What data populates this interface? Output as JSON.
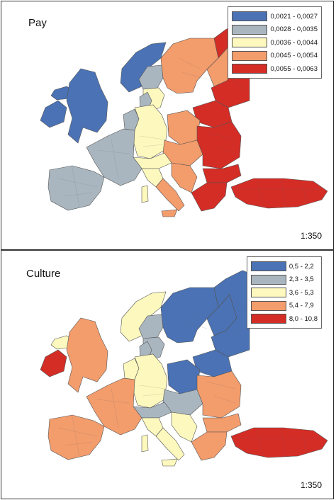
{
  "maps": [
    {
      "title": "Pay",
      "scale": "1:350",
      "legend": [
        {
          "label": "0,0021 - 0,0027",
          "color": "#4a72b5"
        },
        {
          "label": "0,0028 - 0,0035",
          "color": "#a9b6bf"
        },
        {
          "label": "0,0036 - 0,0044",
          "color": "#fdf8bd"
        },
        {
          "label": "0,0045 - 0,0054",
          "color": "#f39c6c"
        },
        {
          "label": "0,0055 - 0,0063",
          "color": "#d42d26"
        }
      ],
      "regions": {
        "iceland": 1,
        "ireland": 1,
        "great-britain": 1,
        "norway": 1,
        "france": 2,
        "iberia": 2,
        "benelux": 2,
        "denmark": 2,
        "central-sweden": 2,
        "germany": 3,
        "switzerland-austria": 3,
        "north-italy": 3,
        "south-sweden": 3,
        "sardinia": 3,
        "sweden": 4,
        "finland": 4,
        "poland": 4,
        "czech-slovakia-hungary": 4,
        "south-italy": 4,
        "sicily": 4,
        "balkans": 4,
        "north-finland": 5,
        "baltics": 5,
        "romania": 5,
        "bulgaria": 5,
        "greece": 5,
        "turkey": 5
      }
    },
    {
      "title": "Culture",
      "scale": "1:350",
      "legend": [
        {
          "label": "0,5 - 2,2",
          "color": "#4a72b5"
        },
        {
          "label": "2,3 - 3,5",
          "color": "#a9b6bf"
        },
        {
          "label": "3,6 - 5,3",
          "color": "#fdf8bd"
        },
        {
          "label": "5,4 - 7,9",
          "color": "#f39c6c"
        },
        {
          "label": "8,0 - 10,8",
          "color": "#d42d26"
        }
      ],
      "regions": {
        "sweden": 1,
        "finland": 1,
        "north-finland": 1,
        "baltics": 1,
        "poland": 1,
        "czech-slovakia-hungary": 2,
        "central-sweden": 2,
        "denmark": 2,
        "switzerland-austria": 2,
        "south-sweden": 2,
        "norway": 3,
        "germany": 3,
        "benelux": 3,
        "north-italy": 3,
        "south-italy": 3,
        "sardinia": 3,
        "sicily": 3,
        "balkans": 3,
        "iceland": 3,
        "great-britain": 4,
        "france": 4,
        "iberia": 4,
        "romania": 4,
        "bulgaria": 4,
        "greece": 4,
        "ireland": 5,
        "turkey": 5
      }
    }
  ]
}
